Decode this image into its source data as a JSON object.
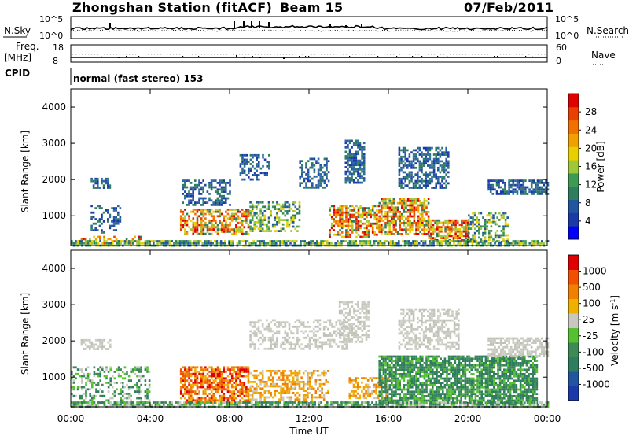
{
  "header": {
    "station": "Zhongshan Station (fitACF)",
    "beam": "Beam 15",
    "date": "07/Feb/2011"
  },
  "top_panels": {
    "nsky_label": "N.Sky",
    "nsky_ticks": [
      "10^5",
      "10^0"
    ],
    "nsearch_label": "N.Search",
    "freq_label": "Freq.",
    "freq_unit": "[MHz]",
    "freq_ticks": [
      "18",
      "8"
    ],
    "nave_label": "Nave",
    "nave_ticks": [
      "60",
      "0"
    ],
    "cpid_label": "CPID",
    "cpid_value": "normal (fast stereo) 153"
  },
  "chart_data": [
    {
      "type": "heatmap",
      "panel": "power",
      "ylabel": "Slant Range [km]",
      "xlabel": "",
      "ylim": [
        180,
        4500
      ],
      "yticks": [
        "1000",
        "2000",
        "3000",
        "4000"
      ],
      "colorbar": {
        "label": "Power [dB]",
        "ticks": [
          "4",
          "8",
          "12",
          "16",
          "20",
          "24",
          "28"
        ],
        "colors": [
          "#0000ff",
          "#1a3aa8",
          "#2255a0",
          "#2e7d5f",
          "#3d9a55",
          "#9ec73a",
          "#e8d000",
          "#f0a000",
          "#f07000",
          "#e84000",
          "#e00000"
        ]
      },
      "regions": [
        {
          "t0": 0.5,
          "t1": 3.5,
          "r0": 250,
          "r1": 450,
          "level": "high",
          "intensity": 0.4
        },
        {
          "t0": 1,
          "t1": 2.5,
          "r0": 550,
          "r1": 1300,
          "level": "low",
          "intensity": 0.4
        },
        {
          "t0": 1,
          "t1": 2,
          "r0": 1750,
          "r1": 2050,
          "level": "low",
          "intensity": 0.5
        },
        {
          "t0": 5.5,
          "t1": 9,
          "r0": 500,
          "r1": 1200,
          "level": "high",
          "intensity": 0.6
        },
        {
          "t0": 5.6,
          "t1": 8,
          "r0": 1300,
          "r1": 2000,
          "level": "low",
          "intensity": 0.5
        },
        {
          "t0": 8.5,
          "t1": 10,
          "r0": 2000,
          "r1": 2700,
          "level": "low",
          "intensity": 0.5
        },
        {
          "t0": 9,
          "t1": 11.5,
          "r0": 550,
          "r1": 1400,
          "level": "mid",
          "intensity": 0.5
        },
        {
          "t0": 11.5,
          "t1": 13,
          "r0": 1800,
          "r1": 2600,
          "level": "low",
          "intensity": 0.5
        },
        {
          "t0": 13,
          "t1": 15.5,
          "r0": 400,
          "r1": 1300,
          "level": "high",
          "intensity": 0.6
        },
        {
          "t0": 13.8,
          "t1": 14.8,
          "r0": 1900,
          "r1": 3100,
          "level": "low",
          "intensity": 0.7
        },
        {
          "t0": 15.5,
          "t1": 18,
          "r0": 500,
          "r1": 1500,
          "level": "high",
          "intensity": 0.7
        },
        {
          "t0": 16.5,
          "t1": 19,
          "r0": 1800,
          "r1": 2900,
          "level": "low",
          "intensity": 0.6
        },
        {
          "t0": 18,
          "t1": 20,
          "r0": 350,
          "r1": 900,
          "level": "high",
          "intensity": 0.7
        },
        {
          "t0": 20,
          "t1": 22,
          "r0": 300,
          "r1": 1100,
          "level": "mid",
          "intensity": 0.5
        },
        {
          "t0": 21,
          "t1": 24,
          "r0": 1600,
          "r1": 2000,
          "level": "low",
          "intensity": 0.7
        },
        {
          "t0": 0,
          "t1": 24,
          "r0": 200,
          "r1": 330,
          "level": "mid",
          "intensity": 0.7
        }
      ]
    },
    {
      "type": "heatmap",
      "panel": "velocity",
      "ylabel": "Slant Range [km]",
      "xlabel": "Time UT",
      "ylim": [
        180,
        4500
      ],
      "yticks": [
        "1000",
        "2000",
        "3000",
        "4000"
      ],
      "xticks": [
        "00:00",
        "04:00",
        "08:00",
        "12:00",
        "16:00",
        "20:00",
        "00:00"
      ],
      "xlim": [
        0,
        24
      ],
      "colorbar": {
        "label": "Velocity [m s^-1]",
        "ticks": [
          "1000",
          "500",
          "100",
          "25",
          "-25",
          "-100",
          "-500",
          "-1000"
        ],
        "colors": [
          "#1a3aa8",
          "#2255a0",
          "#2e7d5f",
          "#3d8a55",
          "#55c030",
          "#c8c8c0",
          "#f0b000",
          "#f08000",
          "#f05000",
          "#e00000"
        ]
      },
      "regions": [
        {
          "t0": 0,
          "t1": 4,
          "r0": 250,
          "r1": 1300,
          "level": "pos_small",
          "intensity": 0.4
        },
        {
          "t0": 0.5,
          "t1": 2,
          "r0": 1750,
          "r1": 2050,
          "level": "neutral",
          "intensity": 0.5
        },
        {
          "t0": 5.5,
          "t1": 9,
          "r0": 300,
          "r1": 1300,
          "level": "neg_large",
          "intensity": 0.7
        },
        {
          "t0": 9,
          "t1": 13,
          "r0": 400,
          "r1": 1200,
          "level": "neg_mid",
          "intensity": 0.5
        },
        {
          "t0": 9,
          "t1": 14,
          "r0": 1800,
          "r1": 2600,
          "level": "neutral",
          "intensity": 0.4
        },
        {
          "t0": 13.5,
          "t1": 15,
          "r0": 2000,
          "r1": 3100,
          "level": "neutral",
          "intensity": 0.6
        },
        {
          "t0": 14,
          "t1": 16,
          "r0": 400,
          "r1": 1000,
          "level": "neg_mid",
          "intensity": 0.5
        },
        {
          "t0": 15.5,
          "t1": 23.5,
          "r0": 300,
          "r1": 1600,
          "level": "pos_mid",
          "intensity": 0.8
        },
        {
          "t0": 16.5,
          "t1": 19.5,
          "r0": 1800,
          "r1": 2900,
          "level": "neutral",
          "intensity": 0.5
        },
        {
          "t0": 21,
          "t1": 24,
          "r0": 1600,
          "r1": 2100,
          "level": "neutral",
          "intensity": 0.7
        },
        {
          "t0": 0,
          "t1": 24,
          "r0": 200,
          "r1": 330,
          "level": "pos_small",
          "intensity": 0.7
        }
      ]
    }
  ]
}
